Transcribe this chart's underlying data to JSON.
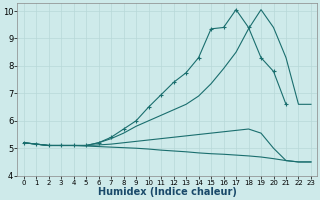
{
  "xlabel": "Humidex (Indice chaleur)",
  "background_color": "#ceeaea",
  "grid_color": "#b8d8d8",
  "line_color": "#1a6e6e",
  "xlim": [
    -0.5,
    23.5
  ],
  "ylim": [
    4,
    10.3
  ],
  "yticks": [
    4,
    5,
    6,
    7,
    8,
    9,
    10
  ],
  "xticks": [
    0,
    1,
    2,
    3,
    4,
    5,
    6,
    7,
    8,
    9,
    10,
    11,
    12,
    13,
    14,
    15,
    16,
    17,
    18,
    19,
    20,
    21,
    22,
    23
  ],
  "series": [
    {
      "x": [
        0,
        1,
        2,
        3,
        4,
        5,
        6,
        7,
        8,
        9,
        10,
        11,
        12,
        13,
        14,
        15,
        16,
        17,
        18,
        19,
        20,
        21
      ],
      "y": [
        5.2,
        5.15,
        5.1,
        5.1,
        5.1,
        5.1,
        5.2,
        5.4,
        5.7,
        6.0,
        6.5,
        6.95,
        7.4,
        7.75,
        8.3,
        9.35,
        9.4,
        10.05,
        9.4,
        8.3,
        7.8,
        6.6
      ],
      "marker": true
    },
    {
      "x": [
        0,
        1,
        2,
        3,
        4,
        5,
        6,
        7,
        8,
        9,
        10,
        11,
        12,
        13,
        14,
        15,
        16,
        17,
        18,
        19,
        20,
        21,
        22,
        23
      ],
      "y": [
        5.2,
        5.15,
        5.1,
        5.1,
        5.1,
        5.1,
        5.2,
        5.35,
        5.55,
        5.8,
        6.0,
        6.2,
        6.4,
        6.6,
        6.9,
        7.35,
        7.9,
        8.5,
        9.35,
        10.05,
        9.4,
        8.3,
        6.6,
        6.6
      ],
      "marker": false
    },
    {
      "x": [
        0,
        1,
        2,
        3,
        4,
        5,
        6,
        7,
        8,
        9,
        10,
        11,
        12,
        13,
        14,
        15,
        16,
        17,
        18,
        19,
        20,
        21,
        22,
        23
      ],
      "y": [
        5.2,
        5.15,
        5.1,
        5.1,
        5.1,
        5.1,
        5.12,
        5.15,
        5.2,
        5.25,
        5.3,
        5.35,
        5.4,
        5.45,
        5.5,
        5.55,
        5.6,
        5.65,
        5.7,
        5.55,
        5.0,
        4.55,
        4.5,
        4.5
      ],
      "marker": false
    },
    {
      "x": [
        0,
        1,
        2,
        3,
        4,
        5,
        6,
        7,
        8,
        9,
        10,
        11,
        12,
        13,
        14,
        15,
        16,
        17,
        18,
        19,
        20,
        21,
        22,
        23
      ],
      "y": [
        5.2,
        5.15,
        5.1,
        5.1,
        5.1,
        5.08,
        5.06,
        5.04,
        5.02,
        5.0,
        4.97,
        4.93,
        4.9,
        4.87,
        4.83,
        4.8,
        4.78,
        4.75,
        4.72,
        4.68,
        4.62,
        4.55,
        4.5,
        4.5
      ],
      "marker": false
    }
  ]
}
